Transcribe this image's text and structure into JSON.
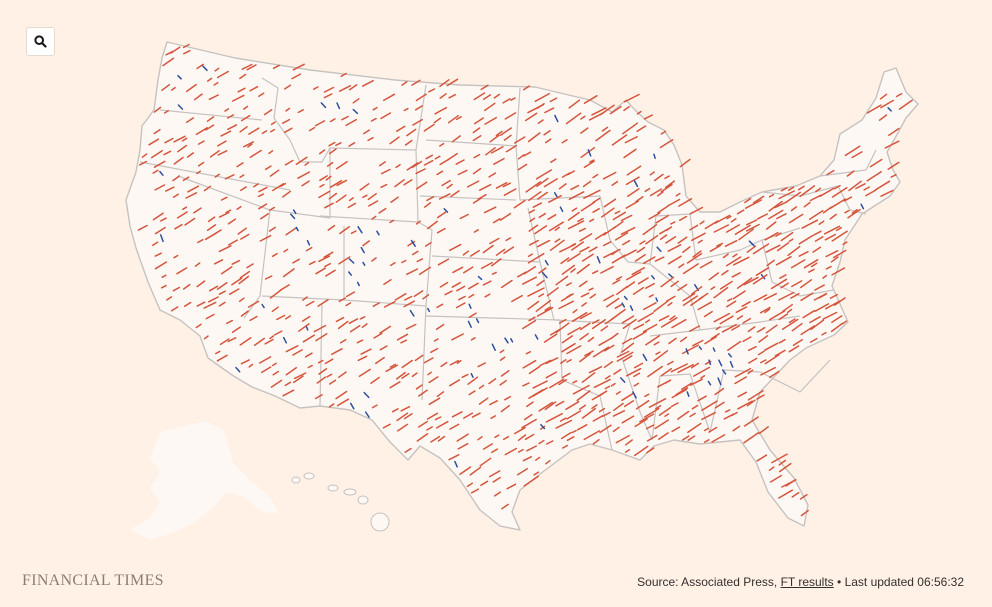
{
  "controls": {
    "search_icon": "magnifier-icon"
  },
  "colors": {
    "background": "#fff1e5",
    "land": "#fdf8f4",
    "state_border": "#c6c2c0",
    "republican_shift": "#d5553d",
    "democratic_shift": "#2b4fa0"
  },
  "legend": {
    "shift_colors": [
      "republican",
      "democratic"
    ]
  },
  "footer": {
    "brand": "FINANCIAL TIMES",
    "source_prefix": "Source: Associated Press, ",
    "link_label": "FT results",
    "separator": " • ",
    "updated_label": "Last updated 06:56:32"
  }
}
